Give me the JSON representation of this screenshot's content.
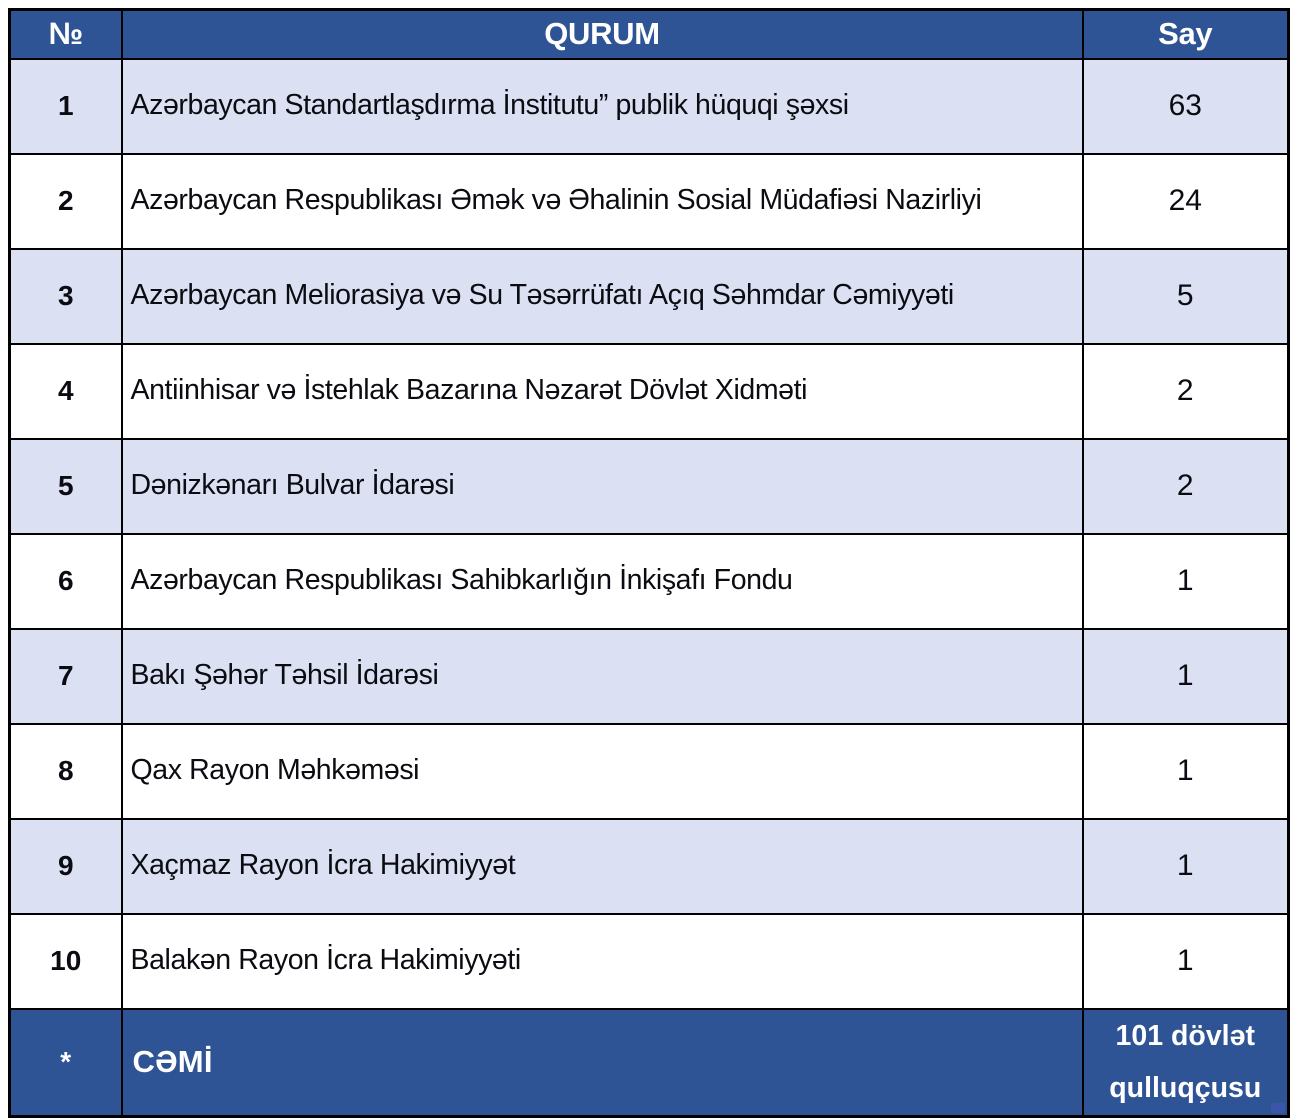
{
  "table": {
    "headers": {
      "no": "№",
      "qurum": "QURUM",
      "say": "Say"
    },
    "rows": [
      {
        "no": "1",
        "qurum": "Azərbaycan Standartlaşdırma İnstitutu” publik hüquqi şəxsi",
        "say": "63"
      },
      {
        "no": "2",
        "qurum": "Azərbaycan Respublikası Əmək və Əhalinin Sosial Müdafiəsi Nazirliyi",
        "say": "24"
      },
      {
        "no": "3",
        "qurum": "Azərbaycan Meliorasiya və Su Təsərrüfatı Açıq Səhmdar Cəmiyyəti",
        "say": "5"
      },
      {
        "no": "4",
        "qurum": "Antiinhisar və İstehlak Bazarına Nəzarət Dövlət Xidməti",
        "say": "2"
      },
      {
        "no": "5",
        "qurum": "Dənizkənarı Bulvar İdarəsi",
        "say": "2"
      },
      {
        "no": "6",
        "qurum": "Azərbaycan Respublikası Sahibkarlığın İnkişafı Fondu",
        "say": "1"
      },
      {
        "no": "7",
        "qurum": "Bakı Şəhər Təhsil İdarəsi",
        "say": "1"
      },
      {
        "no": "8",
        "qurum": "Qax Rayon Məhkəməsi",
        "say": "1"
      },
      {
        "no": "9",
        "qurum": "Xaçmaz Rayon İcra Hakimiyyət",
        "say": "1"
      },
      {
        "no": "10",
        "qurum": "Balakən Rayon İcra Hakimiyyəti",
        "say": "1"
      }
    ],
    "footer": {
      "no": "*",
      "qurum": "CƏMİ",
      "say": "101 dövlət qulluqçusu"
    }
  },
  "colors": {
    "header_bg": "#2F5496",
    "footer_bg": "#2F5496",
    "alt_row_bg": "#DBE1F2",
    "row_bg": "#FFFFFF",
    "border": "#000000",
    "header_text": "#FFFFFF",
    "body_text": "#0B0B12"
  }
}
